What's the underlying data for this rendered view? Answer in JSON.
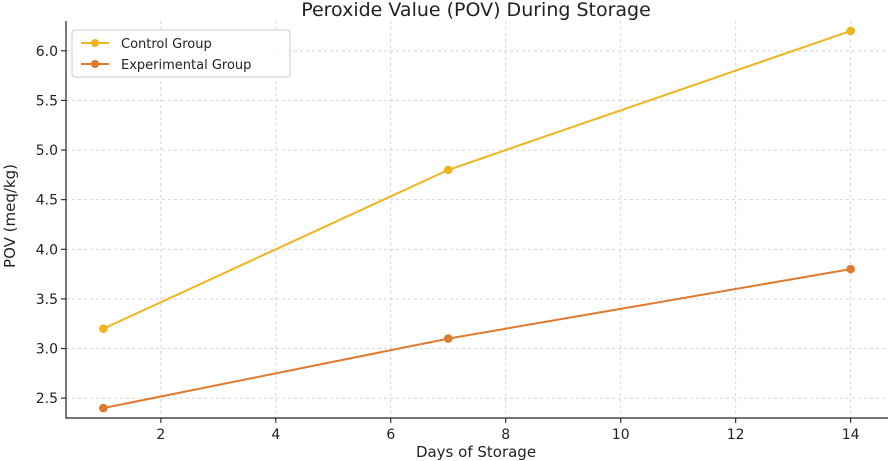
{
  "chart_data": {
    "type": "line",
    "title": "Peroxide Value (POV) During Storage",
    "xlabel": "Days of Storage",
    "ylabel": "POV (meq/kg)",
    "x": [
      1,
      7,
      14
    ],
    "xlim": [
      0.35,
      14.65
    ],
    "ylim": [
      2.3,
      6.3
    ],
    "xticks": [
      2,
      4,
      6,
      8,
      10,
      12,
      14
    ],
    "yticks": [
      2.5,
      3.0,
      3.5,
      4.0,
      4.5,
      5.0,
      5.5,
      6.0
    ],
    "grid": true,
    "legend_position": "top-left",
    "series": [
      {
        "name": "Control Group",
        "color": "#f0b41e",
        "values": [
          3.2,
          4.8,
          6.2
        ]
      },
      {
        "name": "Experimental Group",
        "color": "#e07a2e",
        "values": [
          2.4,
          3.1,
          3.8
        ]
      }
    ]
  }
}
